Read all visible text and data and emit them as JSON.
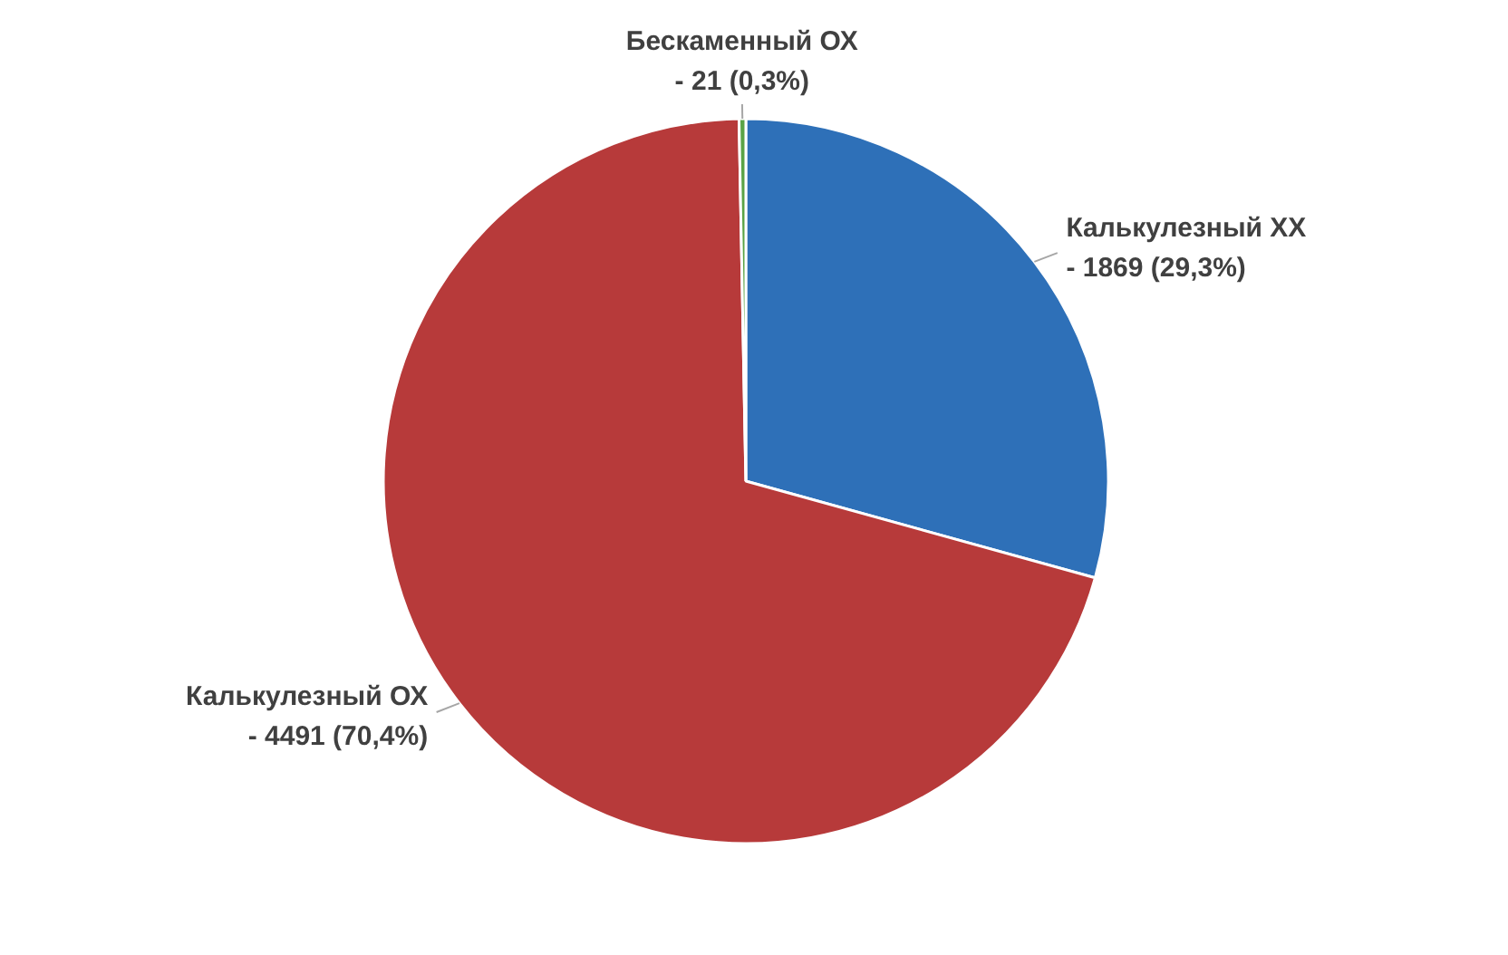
{
  "chart_data": {
    "type": "pie",
    "categories": [
      "Калькулезный ХХ - 1869 (29,3%)",
      "Калькулезный ОХ - 4491 (70,4%)",
      "Бескаменный ОХ - 21 (0,3%)"
    ],
    "values": [
      29.3,
      70.4,
      0.3
    ],
    "colors": [
      "#2e70b8",
      "#b73a3a",
      "#5aa346"
    ]
  }
}
